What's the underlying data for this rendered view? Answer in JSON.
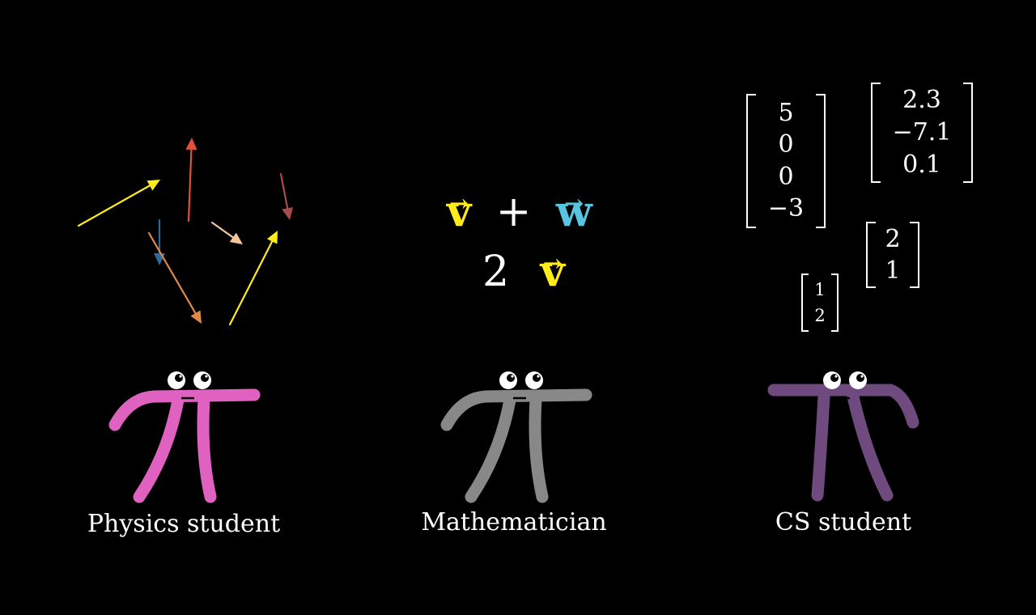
{
  "colors": {
    "yellow": "#ffec1a",
    "blue": "#58c4dd",
    "pink": "#e062c0",
    "gray": "#888888",
    "purple": "#6e4a7e",
    "red": "#e0503a",
    "orange": "#e08a46",
    "peach": "#f5c59a",
    "maroon": "#a84b4b",
    "darkblue": "#2d6a9a"
  },
  "physics_arrows": [
    {
      "color": "#ffec1a",
      "name": "yellow-arrow"
    },
    {
      "color": "#e0503a",
      "name": "red-arrow"
    },
    {
      "color": "#a84b4b",
      "name": "maroon-arrow"
    },
    {
      "color": "#f5c59a",
      "name": "peach-arrow"
    },
    {
      "color": "#2d6a9a",
      "name": "dark-blue-arrow"
    },
    {
      "color": "#e08a46",
      "name": "orange-arrow"
    },
    {
      "color": "#ffec1a",
      "name": "yellow-arrow-long"
    }
  ],
  "math": {
    "v": "v",
    "plus": "+",
    "w": "w",
    "two": "2",
    "arrow": "→"
  },
  "cs_matrices": {
    "m1": [
      "5",
      "0",
      "0",
      "−3"
    ],
    "m2": [
      "2.3",
      "−7.1",
      "0.1"
    ],
    "m3": [
      "2",
      "1"
    ],
    "m4": [
      "1",
      "2"
    ]
  },
  "captions": {
    "physics": "Physics student",
    "math": "Mathematician",
    "cs": "CS student"
  },
  "characters": [
    {
      "name": "physics-pi-creature",
      "color": "#e062c0"
    },
    {
      "name": "mathematician-pi-creature",
      "color": "#888888"
    },
    {
      "name": "cs-pi-creature",
      "color": "#6e4a7e"
    }
  ]
}
